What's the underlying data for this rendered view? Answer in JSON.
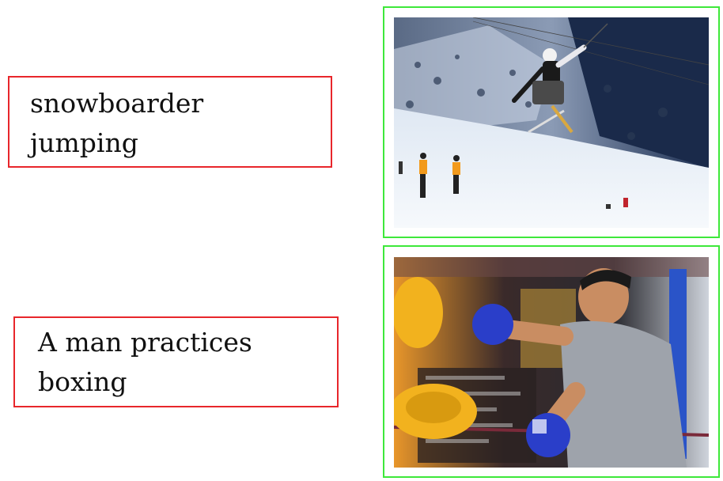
{
  "captions": {
    "first": "snowboarder\njumping",
    "second": "A man practices\nboxing"
  },
  "colors": {
    "caption_border": "#e8262b",
    "image_border": "#3ee83a"
  },
  "images": {
    "first": "skier-jump-photo",
    "second": "boxing-training-photo"
  }
}
